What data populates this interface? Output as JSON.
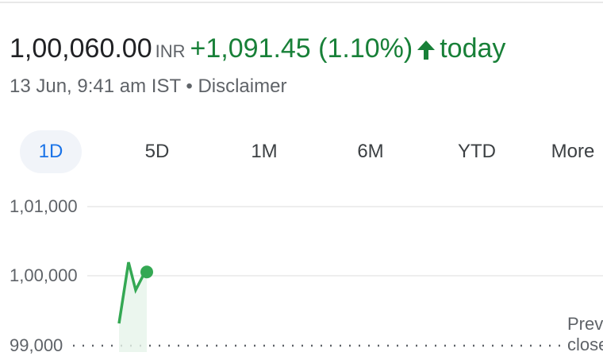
{
  "quote": {
    "price": "1,00,060.00",
    "currency": "INR",
    "change": "+1,091.45 (1.10%)",
    "direction_icon": "arrow-up-icon",
    "period": "today",
    "timestamp": "13 Jun, 9:41 am IST",
    "separator": "•",
    "disclaimer": "Disclaimer"
  },
  "tabs": [
    {
      "label": "1D",
      "active": true
    },
    {
      "label": "5D"
    },
    {
      "label": "1M"
    },
    {
      "label": "6M"
    },
    {
      "label": "YTD"
    },
    {
      "label": "More"
    }
  ],
  "colors": {
    "positive": "#188038",
    "line": "#34a853",
    "active_tab": "#1a73e8"
  },
  "chart_data": {
    "type": "line",
    "y_ticks": [
      "1,01,000",
      "1,00,000",
      "99,000"
    ],
    "ylim": [
      99000,
      101000
    ],
    "series": [
      {
        "values": [
          99320,
          100200,
          99800,
          100000,
          100060
        ]
      }
    ],
    "previous_close_label": "Previous close",
    "previous_close_value": 99000
  }
}
